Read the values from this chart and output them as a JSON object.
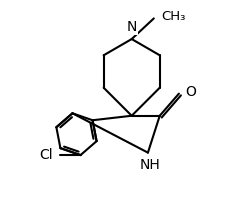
{
  "background_color": "#ffffff",
  "line_color": "#000000",
  "lw": 1.5,
  "figsize": [
    2.28,
    2.02
  ],
  "dpi": 100,
  "xlim": [
    -3.8,
    3.2
  ],
  "ylim": [
    -3.2,
    3.6
  ],
  "font_size": 10
}
